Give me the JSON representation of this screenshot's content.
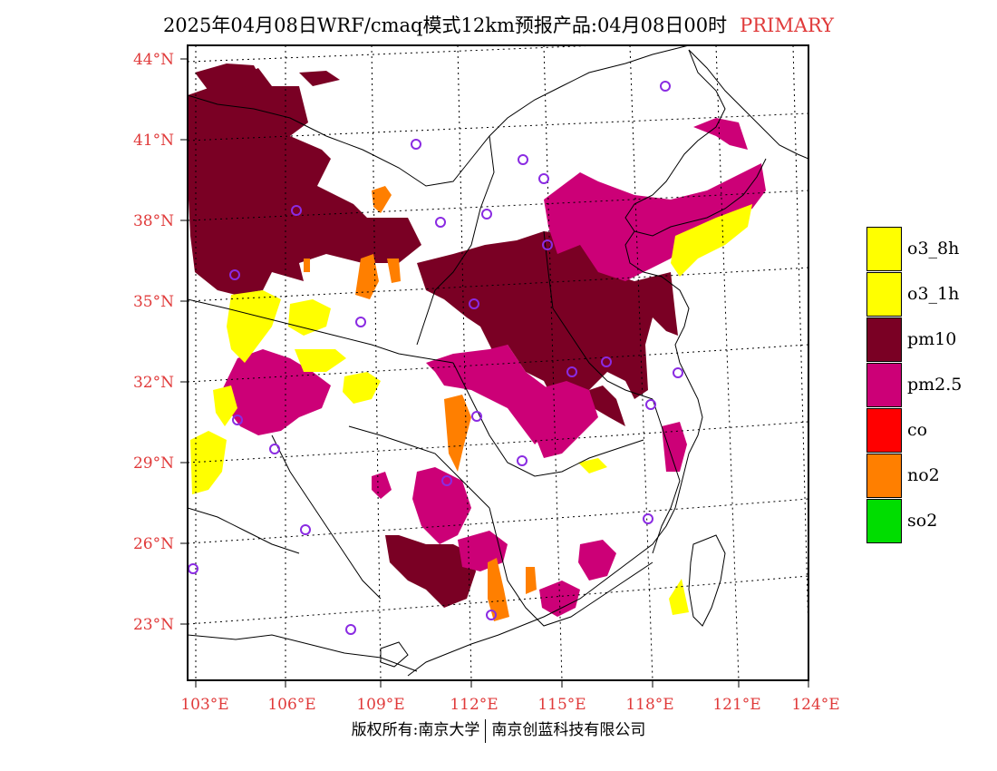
{
  "header": {
    "title": "2025年04月08日WRF/cmaq模式12km预报产品:04月08日00时",
    "tag": "PRIMARY"
  },
  "axes": {
    "lat_labels": [
      "44°N",
      "41°N",
      "38°N",
      "35°N",
      "32°N",
      "29°N",
      "26°N",
      "23°N"
    ],
    "lon_labels": [
      "103°E",
      "106°E",
      "109°E",
      "112°E",
      "115°E",
      "118°E",
      "121°E",
      "124°E"
    ]
  },
  "legend": {
    "items": [
      {
        "label": "o3_8h",
        "color": "#ffff00"
      },
      {
        "label": "o3_1h",
        "color": "#ffff00"
      },
      {
        "label": "pm10",
        "color": "#7a0024"
      },
      {
        "label": "pm2.5",
        "color": "#cc0077"
      },
      {
        "label": "co",
        "color": "#ff0000"
      },
      {
        "label": "no2",
        "color": "#ff7f00"
      },
      {
        "label": "so2",
        "color": "#00dd00"
      }
    ]
  },
  "footer": {
    "left": "版权所有:南京大学",
    "right": "南京创蓝科技有限公司"
  },
  "colors": {
    "axis_label": "#e03a3a",
    "station_marker": "#8a2be2",
    "pm10": "#7a0024",
    "pm25": "#cc0077",
    "o3": "#ffff00",
    "no2": "#ff7f00"
  }
}
